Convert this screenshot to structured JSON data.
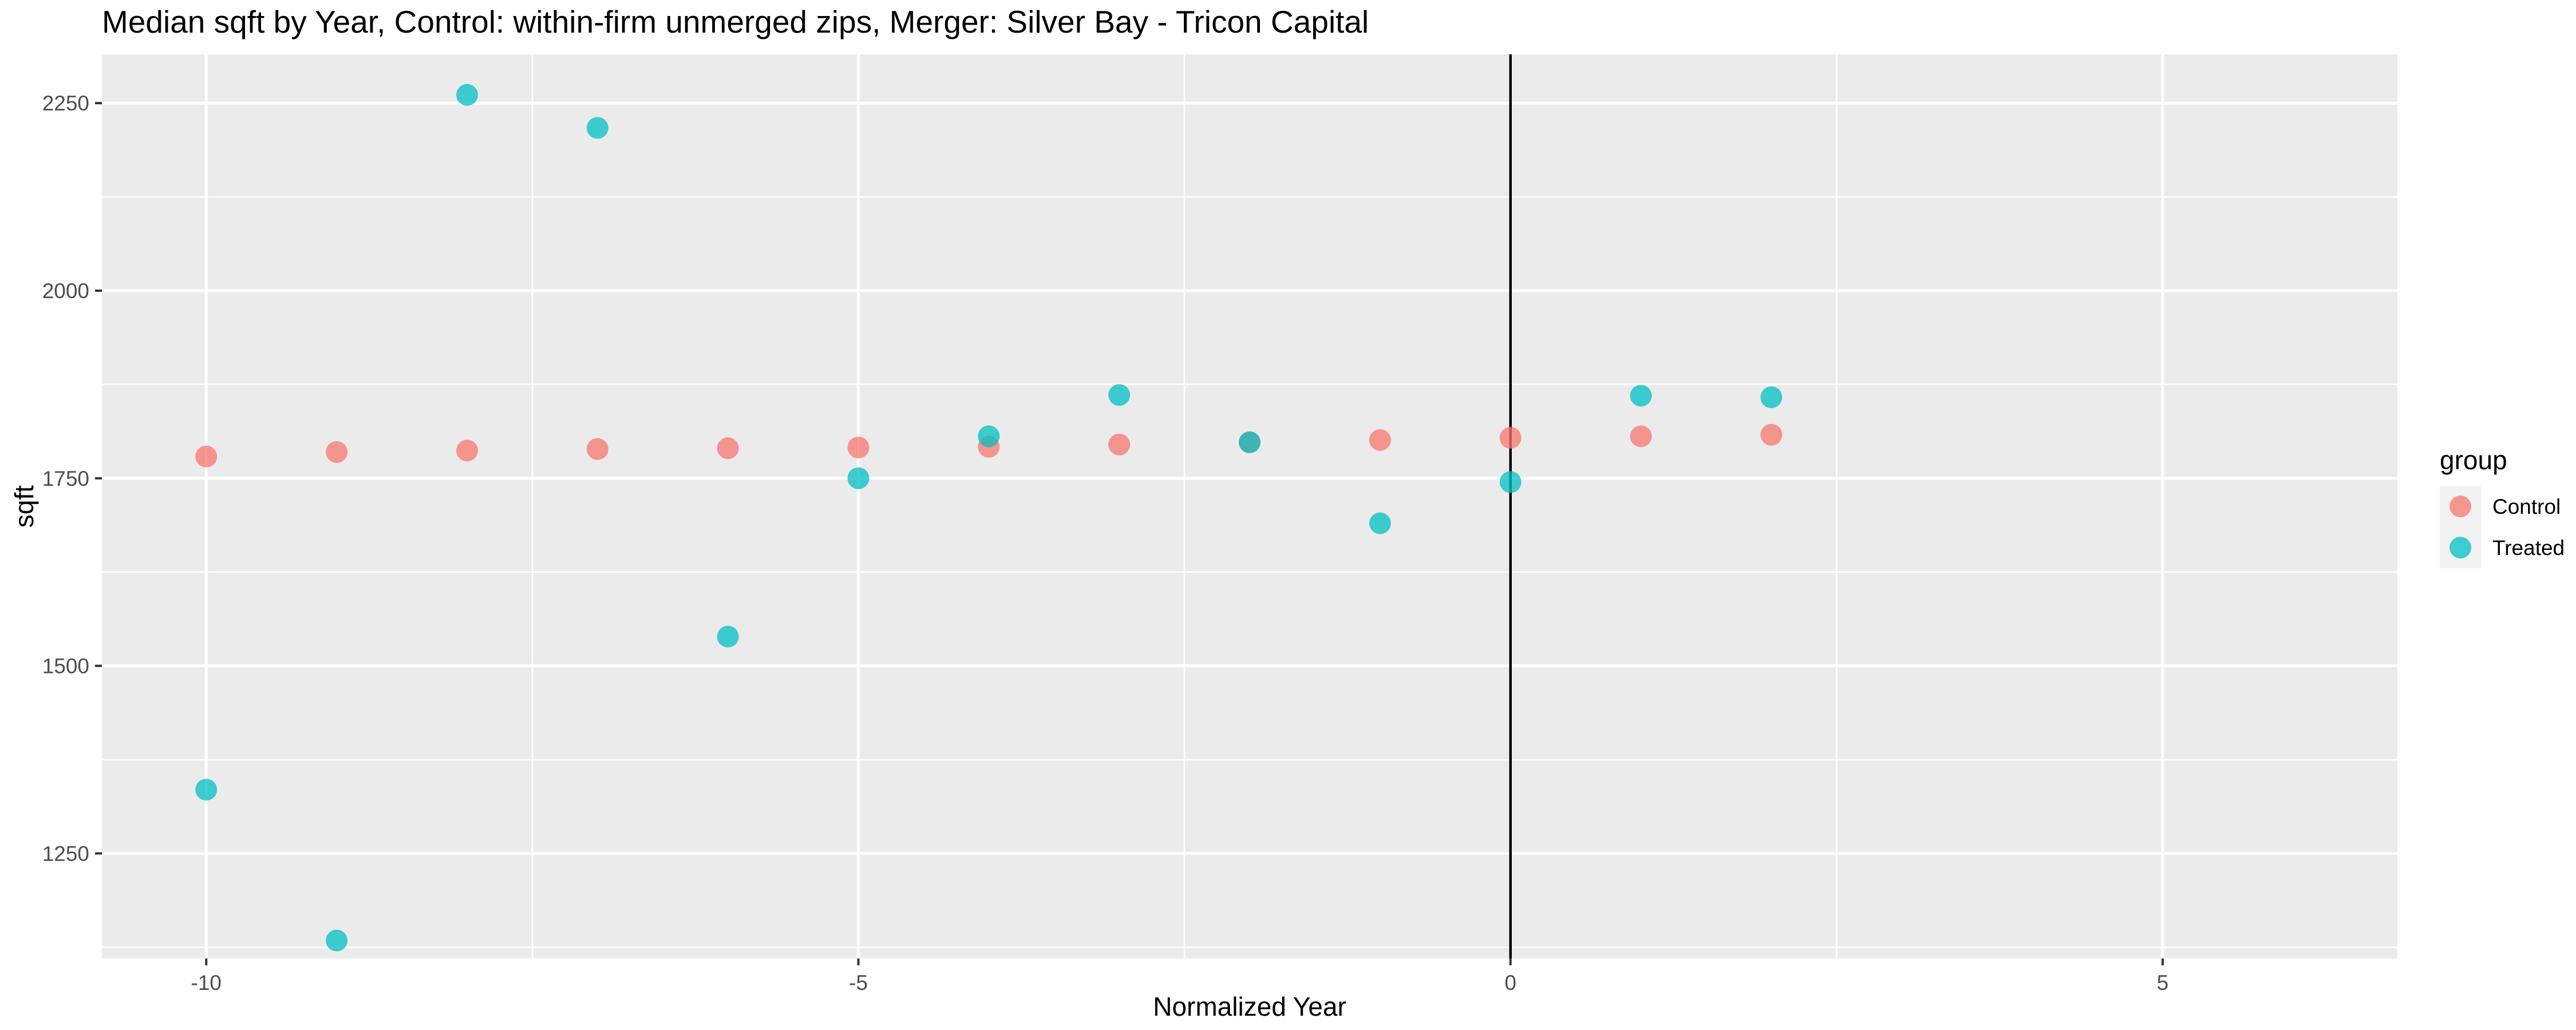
{
  "chart_data": {
    "type": "scatter",
    "title": "Median sqft by Year, Control: within-firm unmerged zips, Merger: Silver Bay - Tricon Capital",
    "xlabel": "Normalized Year",
    "ylabel": "sqft",
    "xlim": [
      -10.8,
      6.8
    ],
    "ylim": [
      1110,
      2315
    ],
    "x_ticks": [
      -10,
      -5,
      0,
      5
    ],
    "y_ticks": [
      1250,
      1500,
      1750,
      2000,
      2250
    ],
    "x_tick_labels": [
      "-10",
      "-5",
      "0",
      "5"
    ],
    "y_tick_labels": [
      "1250",
      "1500",
      "1750",
      "2000",
      "2250"
    ],
    "vline_x": 0,
    "grid": true,
    "legend": {
      "title": "group",
      "position": "right"
    },
    "series": [
      {
        "name": "Control",
        "color": "#F8766D",
        "x": [
          -10,
          -9,
          -8,
          -7,
          -6,
          -5,
          -4,
          -3,
          -2,
          -1,
          0,
          1,
          2
        ],
        "y": [
          1779,
          1785,
          1787,
          1789,
          1790,
          1791,
          1792,
          1795,
          1798,
          1801,
          1804,
          1806,
          1808
        ]
      },
      {
        "name": "Treated",
        "color": "#00BFC4",
        "x": [
          -10,
          -9,
          -8,
          -7,
          -6,
          -5,
          -4,
          -3,
          -2,
          -1,
          0,
          1,
          2
        ],
        "y": [
          1335,
          1134,
          2261,
          2217,
          1539,
          1750,
          1806,
          1861,
          1798,
          1690,
          1745,
          1860,
          1858
        ]
      }
    ]
  }
}
